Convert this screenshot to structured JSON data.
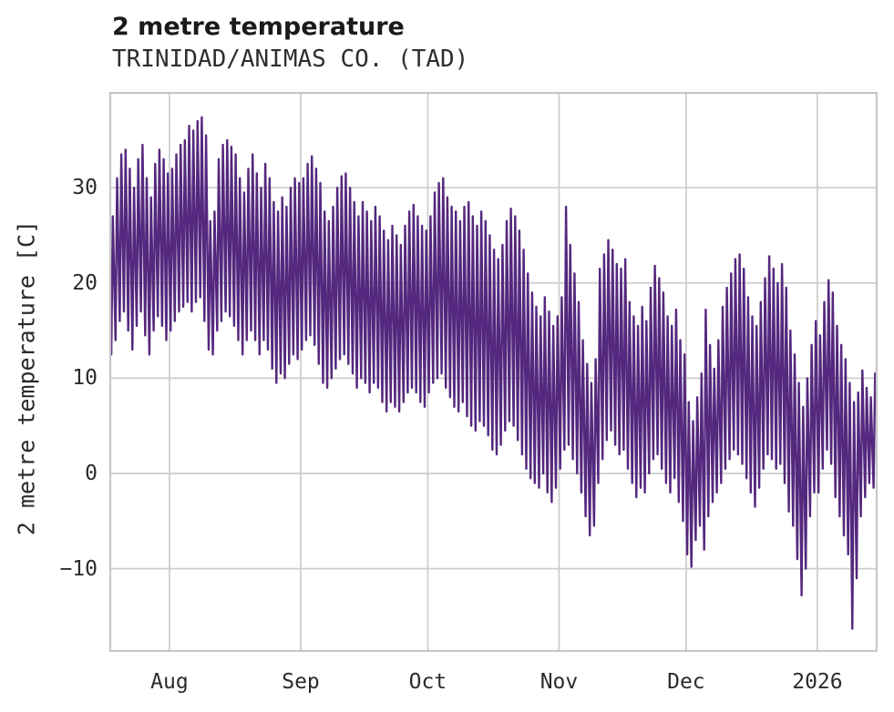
{
  "chart_data": {
    "type": "line",
    "title": "2 metre temperature",
    "subtitle": "TRINIDAD/ANIMAS CO. (TAD)",
    "ylabel": "2 metre temperature [C]",
    "series_name": "2 metre temperature",
    "line_color": "#54287e",
    "grid_color": "#cccccc",
    "border_color": "#c6c6c6",
    "background_color": "#ffffff",
    "grid": "on",
    "legend": "none",
    "y_ticks": [
      30,
      20,
      10,
      0,
      -10
    ],
    "ylim": [
      -18.7,
      40.1
    ],
    "x_tick_labels": [
      "Aug",
      "Sep",
      "Oct",
      "Nov",
      "Dec",
      "2026"
    ],
    "x_tick_day_offsets": [
      14,
      45,
      75,
      106,
      136,
      167
    ],
    "xlim_days": [
      0,
      181.3
    ],
    "daily_max": [
      27,
      31,
      33.5,
      34,
      32,
      30,
      33,
      34.5,
      31,
      29,
      32.5,
      34,
      33,
      31.5,
      32,
      33.5,
      34.5,
      35,
      36.5,
      36,
      37,
      37.4,
      35.5,
      26.5,
      27.5,
      33,
      34.5,
      35,
      34.3,
      33.5,
      31,
      29.5,
      32,
      33.5,
      31.5,
      30,
      32.5,
      31,
      28.5,
      27.5,
      29,
      28,
      30,
      31,
      30.5,
      31,
      32.5,
      33.3,
      32,
      30.5,
      27.5,
      26.5,
      28,
      30,
      31.2,
      31.5,
      30,
      28.5,
      27,
      28.5,
      27.5,
      26.5,
      28,
      27,
      25.5,
      24.5,
      26,
      25,
      24,
      26,
      27.5,
      28.2,
      27,
      26,
      25.5,
      27,
      29.5,
      30.5,
      31,
      29,
      28,
      27.5,
      26.5,
      28,
      28.5,
      27,
      26,
      27.5,
      26.5,
      25,
      23.5,
      22.5,
      24,
      26.5,
      27.8,
      27,
      25.5,
      23.5,
      21,
      19,
      17.5,
      16.5,
      18.5,
      17,
      15.5,
      16.5,
      18.5,
      28,
      24,
      21,
      18,
      14,
      11.5,
      9.5,
      12,
      21.5,
      23,
      24.5,
      23.5,
      22,
      21.5,
      22.5,
      18,
      16.5,
      15.5,
      17.5,
      16,
      19.5,
      21.8,
      20.5,
      19,
      16.5,
      15.5,
      17.2,
      14,
      12.5,
      7.5,
      5.5,
      8,
      10.5,
      17.2,
      13.5,
      11,
      14,
      17.5,
      19.5,
      21,
      22.5,
      23,
      21.5,
      18.5,
      16.5,
      15.5,
      18,
      20.5,
      22.8,
      21.5,
      20,
      22,
      19.5,
      15,
      12.5,
      9.5,
      7,
      10,
      13.5,
      16,
      14.5,
      18,
      20.3,
      19,
      15.5,
      13.5,
      12,
      9.5,
      7.5,
      8.5,
      10.8,
      9,
      8,
      10.5,
      11
    ],
    "daily_min": [
      12.5,
      14,
      16,
      17,
      15,
      13,
      15.5,
      17,
      14.5,
      12.5,
      15,
      16.5,
      15.5,
      14,
      15,
      16,
      17,
      17.5,
      18,
      17,
      18,
      18.5,
      16,
      13,
      12.5,
      15,
      16,
      17,
      16.5,
      15.5,
      14,
      12.5,
      14,
      15,
      14,
      12.5,
      14,
      13,
      11,
      9.5,
      10.5,
      10,
      11.5,
      12.5,
      12,
      13,
      14,
      14.5,
      13.5,
      11.5,
      9.5,
      9,
      10,
      11,
      12,
      12.5,
      11.5,
      10.5,
      9,
      10,
      9.5,
      8.5,
      9.5,
      9,
      7.5,
      6.5,
      7.5,
      7,
      6.5,
      7.5,
      8.5,
      9,
      8.5,
      7.5,
      7,
      8.5,
      9.5,
      10,
      10.5,
      9,
      8,
      7,
      6.5,
      7.5,
      6,
      5,
      4.5,
      5.5,
      5,
      4,
      2.5,
      2,
      3,
      4.5,
      5.5,
      5,
      3.5,
      2,
      0.5,
      -0.5,
      -1,
      -1.5,
      0,
      -2,
      -3,
      -1.5,
      0.5,
      2.5,
      3,
      1.5,
      0,
      -2,
      -4.5,
      -6.5,
      -5.5,
      -1,
      1.5,
      3.5,
      4.5,
      3,
      2,
      2.5,
      0.5,
      -1,
      -2.5,
      -1.5,
      -2,
      0,
      1.5,
      2,
      0.5,
      -1,
      -2,
      -0.5,
      -3,
      -5,
      -8.5,
      -9.8,
      -7,
      -5.5,
      -8,
      -4.5,
      -3,
      -2,
      -1,
      0.5,
      1.5,
      2.5,
      2,
      1,
      -0.5,
      -2,
      -3.5,
      -1.5,
      0.5,
      2,
      1.5,
      0.5,
      1,
      -1,
      -4,
      -5.5,
      -9,
      -12.8,
      -10,
      -4.5,
      -2,
      -2,
      0.5,
      2.5,
      1,
      -2.5,
      -4.5,
      -6.5,
      -8.5,
      -16.3,
      -11,
      -4.5,
      -2.5,
      -1,
      -1.5,
      0.5
    ]
  }
}
